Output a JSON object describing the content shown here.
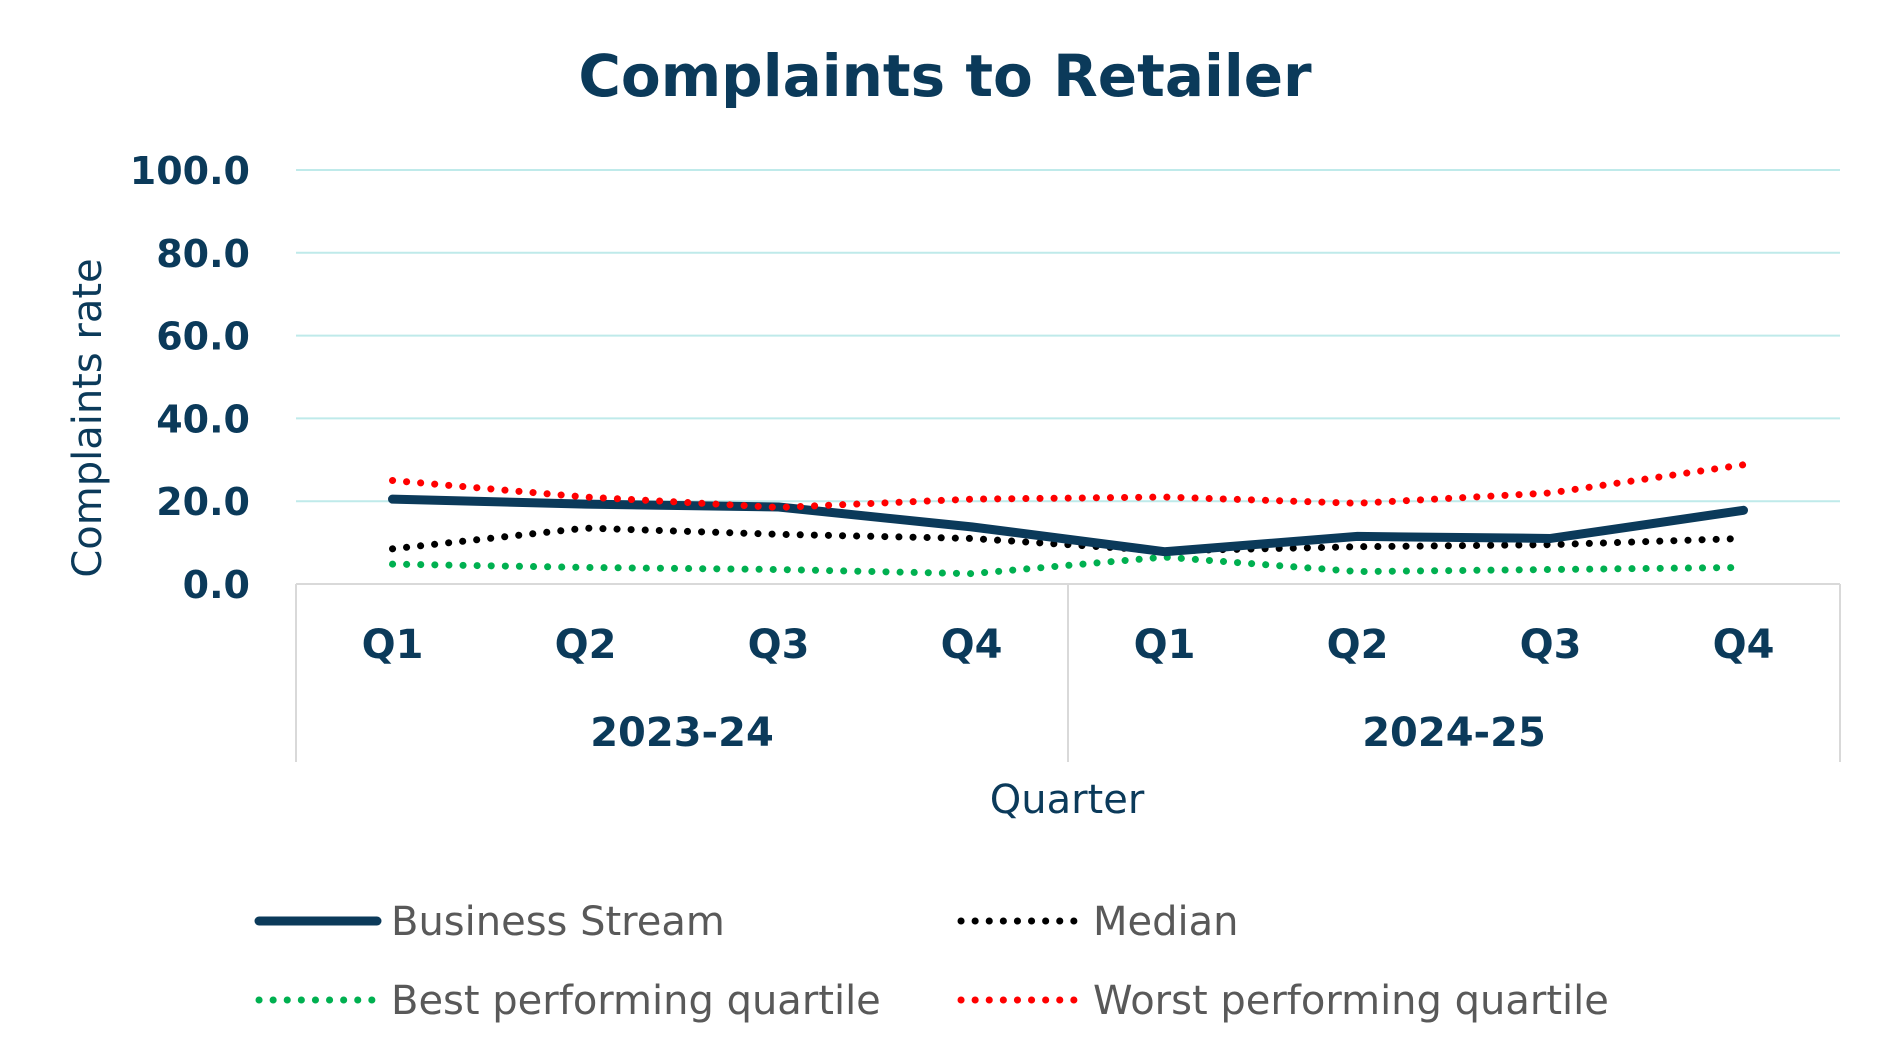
{
  "chart_data": {
    "type": "line",
    "title": "Complaints to Retailer",
    "xlabel": "Quarter",
    "ylabel": "Complaints rate",
    "ylim": [
      0,
      100
    ],
    "yticks": [
      "100.0",
      "80.0",
      "60.0",
      "40.0",
      "20.0",
      "0.0"
    ],
    "grid": true,
    "legend_position": "bottom",
    "categories": [
      "Q1",
      "Q2",
      "Q3",
      "Q4",
      "Q1",
      "Q2",
      "Q3",
      "Q4"
    ],
    "groups": [
      {
        "label": "2023-24",
        "span": [
          0,
          3
        ]
      },
      {
        "label": "2024-25",
        "span": [
          4,
          7
        ]
      }
    ],
    "series": [
      {
        "name": "Business Stream",
        "values": [
          20.5,
          19.3,
          18.6,
          13.8,
          7.8,
          11.5,
          11.0,
          17.8
        ],
        "color": "#0b3a5a",
        "style": "solid"
      },
      {
        "name": "Median",
        "values": [
          8.5,
          13.5,
          12.0,
          11.0,
          8.0,
          9.0,
          9.5,
          11.0
        ],
        "color": "#000000",
        "style": "dotted"
      },
      {
        "name": "Best performing quartile",
        "values": [
          4.8,
          4.0,
          3.5,
          2.5,
          6.5,
          3.0,
          3.5,
          4.0
        ],
        "color": "#00b050",
        "style": "dotted"
      },
      {
        "name": "Worst performing quartile",
        "values": [
          25.0,
          21.0,
          18.5,
          20.5,
          21.0,
          19.5,
          22.0,
          28.8
        ],
        "color": "#ff0000",
        "style": "dotted"
      }
    ],
    "colors": {
      "text": "#0b3a5a",
      "legend_text": "#595959",
      "grid": "#bfeaea",
      "axis": "#d9d9d9"
    }
  }
}
